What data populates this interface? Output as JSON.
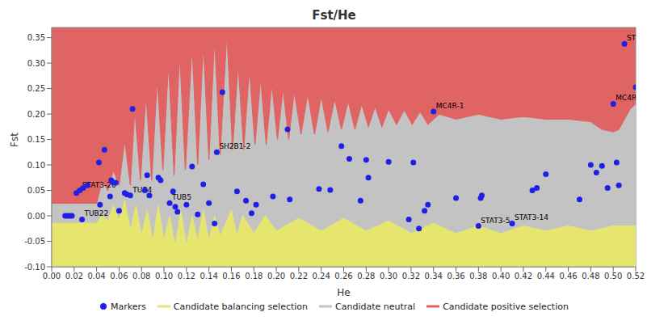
{
  "chart_data": {
    "type": "scatter",
    "title": "Fst/He",
    "x_label": "He",
    "y_label": "Fst",
    "grid": true,
    "legend": "bottom",
    "xlim": [
      0,
      0.52
    ],
    "xticks": [
      {
        "value": 0,
        "label": "0.00"
      },
      {
        "value": 0.02,
        "label": "0.02"
      },
      {
        "value": 0.04,
        "label": "0.04"
      },
      {
        "value": 0.06,
        "label": "0.06"
      },
      {
        "value": 0.08,
        "label": "0.08"
      },
      {
        "value": 0.1,
        "label": "0.10"
      },
      {
        "value": 0.12,
        "label": "0.12"
      },
      {
        "value": 0.14,
        "label": "0.14"
      },
      {
        "value": 0.16,
        "label": "0.16"
      },
      {
        "value": 0.18,
        "label": "0.18"
      },
      {
        "value": 0.2,
        "label": "0.20"
      },
      {
        "value": 0.22,
        "label": "0.22"
      },
      {
        "value": 0.24,
        "label": "0.24"
      },
      {
        "value": 0.26,
        "label": "0.26"
      },
      {
        "value": 0.28,
        "label": "0.28"
      },
      {
        "value": 0.3,
        "label": "0.30"
      },
      {
        "value": 0.32,
        "label": "0.32"
      },
      {
        "value": 0.34,
        "label": "0.34"
      },
      {
        "value": 0.36,
        "label": "0.36"
      },
      {
        "value": 0.38,
        "label": "0.38"
      },
      {
        "value": 0.4,
        "label": "0.40"
      },
      {
        "value": 0.42,
        "label": "0.42"
      },
      {
        "value": 0.44,
        "label": "0.44"
      },
      {
        "value": 0.46,
        "label": "0.46"
      },
      {
        "value": 0.48,
        "label": "0.48"
      },
      {
        "value": 0.5,
        "label": "0.50"
      },
      {
        "value": 0.52,
        "label": "0.52"
      }
    ],
    "ylim": [
      -0.1,
      0.37
    ],
    "yticks": [
      {
        "value": -0.1,
        "label": "-0.10"
      },
      {
        "value": -0.05,
        "label": "-0.05"
      },
      {
        "value": 0,
        "label": "0.00"
      },
      {
        "value": 0.05,
        "label": "0.05"
      },
      {
        "value": 0.1,
        "label": "0.10"
      },
      {
        "value": 0.15,
        "label": "0.15"
      },
      {
        "value": 0.2,
        "label": "0.20"
      },
      {
        "value": 0.25,
        "label": "0.25"
      },
      {
        "value": 0.3,
        "label": "0.30"
      },
      {
        "value": 0.35,
        "label": "0.35"
      }
    ],
    "series": [
      {
        "name": "Markers",
        "type": "scatter",
        "color": "#1f1fe6",
        "marker": "circle",
        "x": [
          0.012,
          0.014,
          0.016,
          0.018,
          0.022,
          0.025,
          0.027,
          0.028,
          0.032,
          0.042,
          0.043,
          0.047,
          0.052,
          0.053,
          0.055,
          0.057,
          0.06,
          0.065,
          0.067,
          0.07,
          0.072,
          0.083,
          0.085,
          0.087,
          0.095,
          0.097,
          0.105,
          0.108,
          0.11,
          0.112,
          0.12,
          0.125,
          0.13,
          0.135,
          0.14,
          0.145,
          0.147,
          0.152,
          0.165,
          0.173,
          0.178,
          0.182,
          0.197,
          0.21,
          0.212,
          0.238,
          0.248,
          0.258,
          0.265,
          0.275,
          0.28,
          0.282,
          0.3,
          0.318,
          0.322,
          0.327,
          0.332,
          0.335,
          0.34,
          0.36,
          0.38,
          0.382,
          0.383,
          0.41,
          0.428,
          0.432,
          0.44,
          0.47,
          0.48,
          0.485,
          0.49,
          0.495,
          0.5,
          0.503,
          0.505,
          0.51,
          0.52
        ],
        "values": [
          0,
          0,
          0,
          0,
          0.045,
          0.05,
          -0.007,
          0.055,
          0.06,
          0.105,
          0.022,
          0.13,
          0.038,
          0.07,
          0.065,
          0.065,
          0.01,
          0.045,
          0.042,
          0.04,
          0.21,
          0.05,
          0.08,
          0.04,
          0.075,
          0.07,
          0.025,
          0.048,
          0.018,
          0.008,
          0.022,
          0.097,
          0.003,
          0.062,
          0.025,
          -0.015,
          0.125,
          0.243,
          0.048,
          0.03,
          0.005,
          0.022,
          0.038,
          0.17,
          0.032,
          0.053,
          0.051,
          0.137,
          0.112,
          0.03,
          0.11,
          0.075,
          0.106,
          -0.007,
          0.105,
          -0.025,
          0.01,
          0.022,
          0.205,
          0.035,
          -0.02,
          0.035,
          0.04,
          -0.015,
          0.05,
          0.055,
          0.082,
          0.032,
          0.1,
          0.085,
          0.098,
          0.055,
          0.22,
          0.105,
          0.06,
          0.338,
          0.253
        ],
        "labels": [
          null,
          null,
          null,
          null,
          null,
          "STAT3-20",
          "TUB22",
          null,
          null,
          null,
          null,
          null,
          null,
          null,
          null,
          null,
          null,
          null,
          null,
          "TUB4",
          null,
          null,
          null,
          null,
          null,
          null,
          "TUB5",
          null,
          null,
          null,
          null,
          null,
          null,
          null,
          null,
          null,
          "SH2B1-2",
          null,
          null,
          null,
          null,
          null,
          null,
          null,
          null,
          null,
          null,
          null,
          null,
          null,
          null,
          null,
          null,
          null,
          null,
          null,
          null,
          null,
          "MC4R-1",
          null,
          "STAT3-5",
          null,
          null,
          "STAT3-14",
          null,
          null,
          null,
          null,
          null,
          null,
          null,
          null,
          "MC4R-",
          null,
          null,
          "ST",
          null
        ]
      },
      {
        "name": "Candidate balancing selection",
        "type": "area",
        "color": "#e6e66e",
        "x": [
          0,
          0.04,
          0.045,
          0.05,
          0.055,
          0.06,
          0.065,
          0.07,
          0.075,
          0.08,
          0.085,
          0.09,
          0.095,
          0.1,
          0.105,
          0.11,
          0.115,
          0.12,
          0.125,
          0.13,
          0.135,
          0.14,
          0.145,
          0.15,
          0.16,
          0.165,
          0.17,
          0.18,
          0.19,
          0.2,
          0.22,
          0.24,
          0.26,
          0.28,
          0.3,
          0.32,
          0.34,
          0.36,
          0.38,
          0.4,
          0.42,
          0.44,
          0.46,
          0.48,
          0.5,
          0.52
        ],
        "values": [
          -0.015,
          -0.015,
          0,
          -0.01,
          0.02,
          -0.01,
          0.03,
          -0.03,
          0.02,
          -0.04,
          0.01,
          -0.05,
          0.02,
          -0.05,
          0,
          -0.06,
          0.01,
          -0.06,
          0,
          -0.05,
          0.01,
          -0.05,
          0,
          -0.04,
          0.01,
          -0.04,
          0,
          -0.035,
          0,
          -0.03,
          -0.005,
          -0.03,
          -0.005,
          -0.03,
          -0.01,
          -0.035,
          -0.015,
          -0.035,
          -0.02,
          -0.035,
          -0.02,
          -0.03,
          -0.02,
          -0.03,
          -0.02,
          -0.02
        ]
      },
      {
        "name": "Candidate neutral",
        "type": "area",
        "color": "#c3c3c3",
        "x": [
          0,
          0.04,
          0.045,
          0.05,
          0.055,
          0.06,
          0.065,
          0.07,
          0.074,
          0.079,
          0.084,
          0.089,
          0.094,
          0.099,
          0.104,
          0.109,
          0.114,
          0.119,
          0.125,
          0.13,
          0.135,
          0.14,
          0.145,
          0.15,
          0.156,
          0.161,
          0.166,
          0.171,
          0.176,
          0.181,
          0.186,
          0.191,
          0.196,
          0.201,
          0.206,
          0.211,
          0.216,
          0.222,
          0.228,
          0.234,
          0.24,
          0.246,
          0.252,
          0.258,
          0.264,
          0.27,
          0.276,
          0.282,
          0.288,
          0.294,
          0.3,
          0.307,
          0.314,
          0.321,
          0.328,
          0.335,
          0.345,
          0.36,
          0.38,
          0.4,
          0.42,
          0.44,
          0.46,
          0.48,
          0.49,
          0.5,
          0.505,
          0.51,
          0.515,
          0.52
        ],
        "values": [
          0.025,
          0.025,
          0.07,
          0.05,
          0.09,
          0.06,
          0.15,
          0.06,
          0.21,
          0.07,
          0.24,
          0.07,
          0.27,
          0.09,
          0.3,
          0.08,
          0.32,
          0.09,
          0.335,
          0.1,
          0.34,
          0.11,
          0.35,
          0.12,
          0.36,
          0.13,
          0.3,
          0.13,
          0.29,
          0.14,
          0.27,
          0.14,
          0.26,
          0.15,
          0.25,
          0.15,
          0.245,
          0.16,
          0.24,
          0.16,
          0.235,
          0.165,
          0.23,
          0.17,
          0.225,
          0.17,
          0.22,
          0.175,
          0.215,
          0.175,
          0.21,
          0.18,
          0.208,
          0.18,
          0.205,
          0.18,
          0.2,
          0.19,
          0.2,
          0.19,
          0.195,
          0.19,
          0.19,
          0.185,
          0.17,
          0.165,
          0.17,
          0.19,
          0.21,
          0.22
        ]
      },
      {
        "name": "Candidate positive selection",
        "type": "background",
        "color": "#e06464"
      }
    ]
  }
}
